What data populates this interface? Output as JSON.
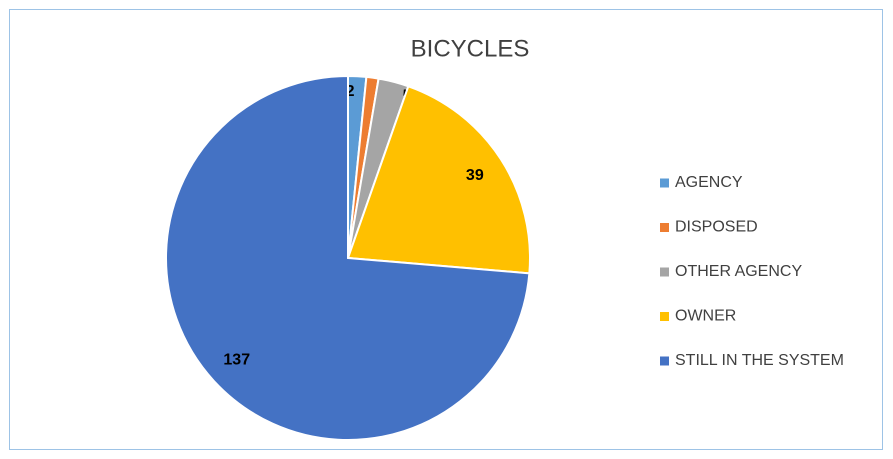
{
  "chart_data": {
    "type": "pie",
    "title": "BICYCLES",
    "categories": [
      "AGENCY",
      "DISPOSED",
      "OTHER AGENCY",
      "OWNER",
      "STILL IN THE SYSTEM"
    ],
    "values": [
      3,
      2,
      5,
      39,
      137
    ],
    "colors": [
      "#5b9bd5",
      "#ed7d31",
      "#a5a5a5",
      "#ffc000",
      "#4472c4"
    ],
    "legend": "right"
  }
}
